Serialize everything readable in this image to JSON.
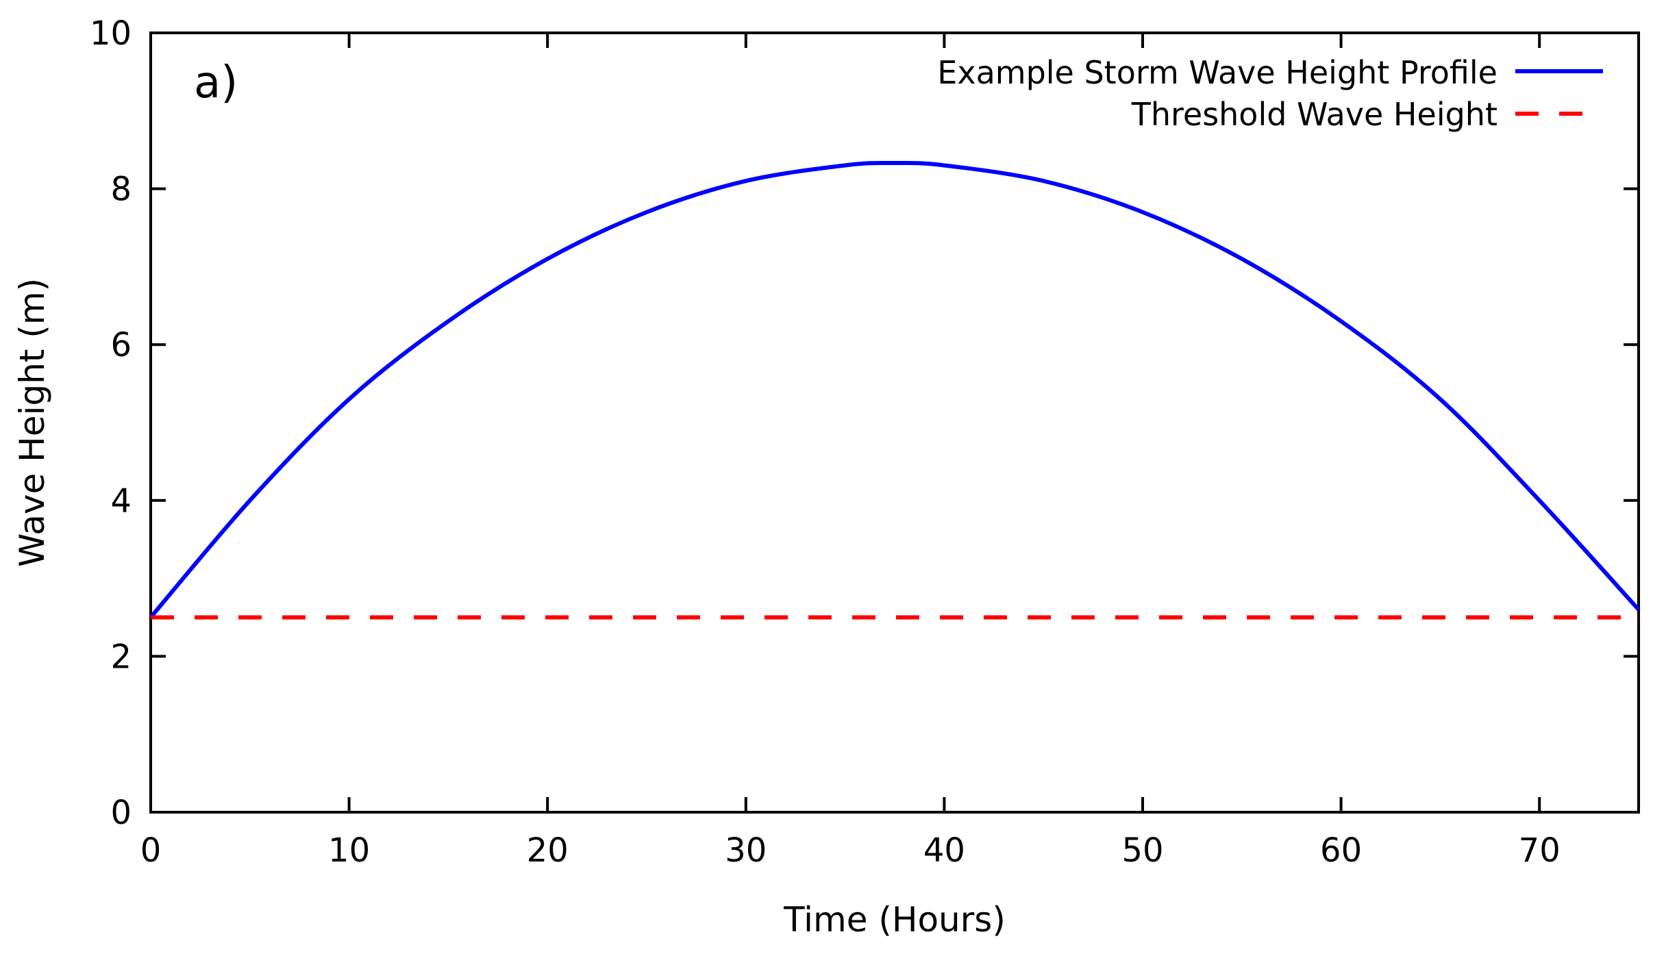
{
  "chart_data": {
    "type": "line",
    "panel_label": "a)",
    "xlabel": "Time (Hours)",
    "ylabel": "Wave Height (m)",
    "xlim": [
      0,
      75
    ],
    "ylim": [
      0,
      10
    ],
    "xticks": [
      0,
      10,
      20,
      30,
      40,
      50,
      60,
      70
    ],
    "yticks": [
      0,
      2,
      4,
      6,
      8,
      10
    ],
    "grid": false,
    "legend_position": "top-right",
    "series": [
      {
        "name": "Example Storm Wave Height Profile",
        "style": "solid",
        "color": "#0000ff",
        "x": [
          0,
          5,
          10,
          15,
          20,
          25,
          30,
          35,
          37.5,
          40,
          45,
          50,
          55,
          60,
          65,
          70,
          75
        ],
        "y": [
          2.5,
          4.0,
          5.3,
          6.3,
          7.1,
          7.7,
          8.1,
          8.3,
          8.33,
          8.3,
          8.1,
          7.7,
          7.1,
          6.3,
          5.3,
          4.0,
          2.6
        ]
      },
      {
        "name": "Threshold Wave Height",
        "style": "dashed",
        "color": "#ff0000",
        "x": [
          0,
          75
        ],
        "y": [
          2.5,
          2.5
        ]
      }
    ]
  }
}
